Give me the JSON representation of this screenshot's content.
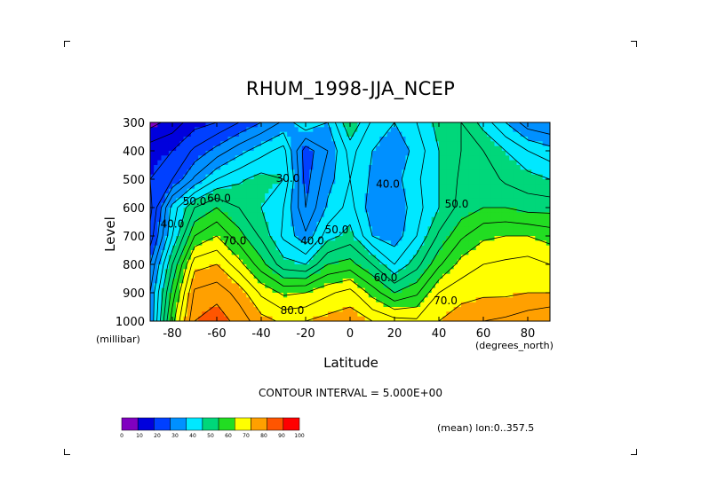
{
  "chart_data": {
    "type": "heatmap",
    "subtype": "filled-contour",
    "title": "RHUM_1998-JJA_NCEP",
    "xlabel": "Latitude",
    "ylabel": "Level",
    "xunit": "(degrees_north)",
    "yunit": "(millibar)",
    "xlim": [
      -90,
      90
    ],
    "ylim": [
      1000,
      300
    ],
    "x_ticks": [
      -80,
      -60,
      -40,
      -20,
      0,
      20,
      40,
      60,
      80
    ],
    "x_tick_labels": [
      "-80",
      "-60",
      "-40",
      "-20",
      "0",
      "20",
      "40",
      "60",
      "80"
    ],
    "y_ticks": [
      300,
      400,
      500,
      600,
      700,
      800,
      900,
      1000
    ],
    "y_tick_labels": [
      "300",
      "400",
      "500",
      "600",
      "700",
      "800",
      "900",
      "1000"
    ],
    "contour_interval_text": "CONTOUR INTERVAL = 5.000E+00",
    "mean_text": "(mean) lon:0..357.5",
    "contour_labels": [
      {
        "text": "30.0",
        "x": -28,
        "y": 510
      },
      {
        "text": "40.0",
        "x": 17,
        "y": 530
      },
      {
        "text": "40.0",
        "x": -80,
        "y": 670
      },
      {
        "text": "50.0",
        "x": -70,
        "y": 590
      },
      {
        "text": "60.0",
        "x": -59,
        "y": 580
      },
      {
        "text": "40.0",
        "x": -17,
        "y": 730
      },
      {
        "text": "50.0",
        "x": -6,
        "y": 690
      },
      {
        "text": "50.0",
        "x": 48,
        "y": 600
      },
      {
        "text": "60.0",
        "x": 16,
        "y": 860
      },
      {
        "text": "70.0",
        "x": -52,
        "y": 730
      },
      {
        "text": "70.0",
        "x": 43,
        "y": 940
      },
      {
        "text": "80.0",
        "x": -26,
        "y": 975
      }
    ],
    "colorbar": {
      "levels": [
        0,
        10,
        20,
        30,
        40,
        50,
        60,
        70,
        80,
        90,
        100
      ],
      "labels": [
        "0",
        "10",
        "20",
        "30",
        "40",
        "50",
        "60",
        "70",
        "80",
        "90",
        "100"
      ],
      "colors": [
        "#8000c0",
        "#0000dd",
        "#0040ff",
        "#0090ff",
        "#00e8ff",
        "#00d77a",
        "#22dd22",
        "#ffff00",
        "#ffa000",
        "#ff5500",
        "#ff0000"
      ]
    },
    "levels_fine": [
      10,
      15,
      20,
      25,
      30,
      35,
      40,
      45,
      50,
      55,
      60,
      65,
      70,
      75,
      80,
      85,
      90,
      95
    ],
    "grid_lat": [
      -90,
      -80,
      -70,
      -60,
      -50,
      -40,
      -30,
      -20,
      -10,
      0,
      10,
      20,
      30,
      40,
      50,
      60,
      70,
      80,
      90
    ],
    "grid_lev": [
      300,
      400,
      500,
      600,
      700,
      800,
      900,
      1000
    ],
    "grid_values": [
      [
        8,
        12,
        18,
        20,
        25,
        30,
        36,
        45,
        40,
        55,
        44,
        40,
        45,
        52,
        55,
        48,
        40,
        32,
        30
      ],
      [
        18,
        20,
        26,
        32,
        38,
        43,
        47,
        27,
        35,
        47,
        40,
        36,
        42,
        50,
        55,
        55,
        50,
        45,
        42
      ],
      [
        20,
        25,
        36,
        45,
        49,
        52,
        50,
        28,
        38,
        45,
        39,
        38,
        44,
        50,
        56,
        58,
        54,
        52,
        50
      ],
      [
        18,
        42,
        55,
        60,
        55,
        50,
        45,
        30,
        41,
        47,
        37,
        36,
        43,
        50,
        57,
        60,
        60,
        58,
        58
      ],
      [
        22,
        45,
        65,
        70,
        62,
        54,
        44,
        36,
        48,
        52,
        40,
        37,
        45,
        56,
        64,
        69,
        70,
        70,
        68
      ],
      [
        30,
        55,
        78,
        80,
        72,
        62,
        52,
        50,
        60,
        62,
        55,
        45,
        53,
        64,
        72,
        75,
        76,
        77,
        75
      ],
      [
        35,
        62,
        86,
        88,
        83,
        74,
        69,
        70,
        74,
        77,
        68,
        60,
        64,
        75,
        78,
        79,
        79,
        80,
        80
      ],
      [
        35,
        68,
        90,
        93,
        88,
        82,
        79,
        80,
        82,
        83,
        80,
        77,
        76,
        80,
        83,
        85,
        86,
        88,
        90
      ]
    ]
  }
}
